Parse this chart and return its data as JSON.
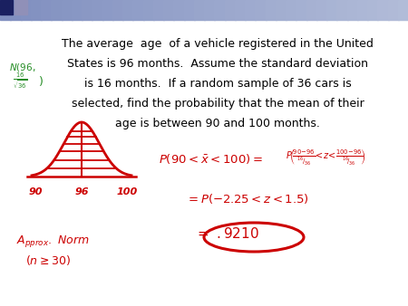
{
  "background_color": "#ffffff",
  "header_color_left": "#8090c0",
  "header_color_right": "#b0b8d8",
  "red_color": "#cc0000",
  "green_color": "#228B22",
  "figsize": [
    4.5,
    3.38
  ],
  "dpi": 100,
  "main_text_lines": [
    "The average  age  of a vehicle registered in the United",
    "States is 96 months.  Assume the standard deviation",
    "is 16 months.  If a random sample of 36 cars is",
    "selected, find the probability that the mean of their",
    "age is between 90 and 100 months."
  ]
}
